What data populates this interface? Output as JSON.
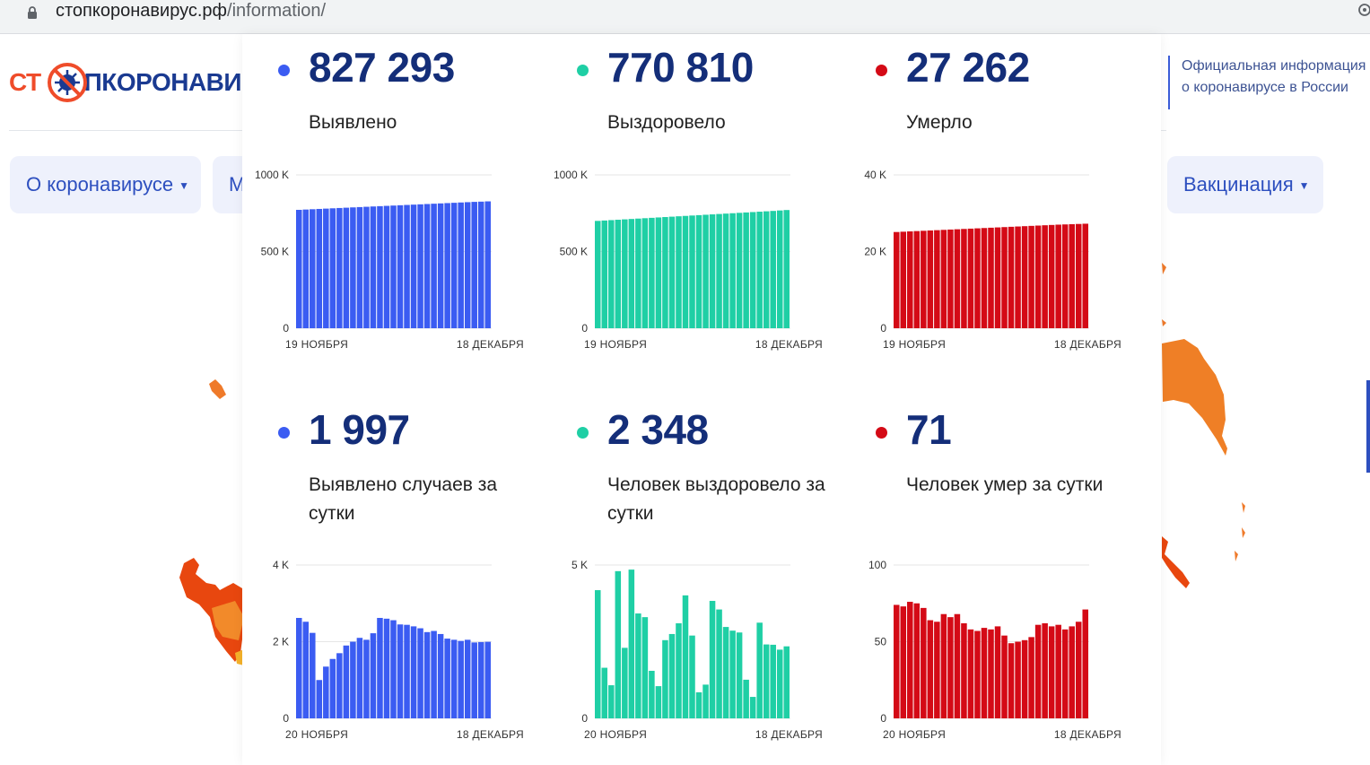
{
  "browser": {
    "url_host": "стопкоронавирус.рф",
    "url_path": "/information/"
  },
  "site": {
    "logo_left": "СТ",
    "logo_right": "ПКОРОНАВИ",
    "official_line1": "Официальная информация",
    "official_line2": "о коронавирусе в России",
    "nav": [
      {
        "label": "О коронавирусе"
      },
      {
        "label": "М"
      },
      {
        "label": "Вакцинация"
      }
    ]
  },
  "colors": {
    "blue": "#3b5cf2",
    "green": "#1fcfa5",
    "red": "#d40a16"
  },
  "stats": [
    {
      "value": "827 293",
      "label": "Выявлено",
      "color": "blue"
    },
    {
      "value": "770 810",
      "label": "Выздоровело",
      "color": "green"
    },
    {
      "value": "27 262",
      "label": "Умерло",
      "color": "red"
    },
    {
      "value": "1 997",
      "label": "Выявлено случаев за сутки",
      "color": "blue"
    },
    {
      "value": "2 348",
      "label": "Человек выздоровело за сутки",
      "color": "green"
    },
    {
      "value": "71",
      "label": "Человек умер за сутки",
      "color": "red"
    }
  ],
  "chart_data": [
    {
      "type": "bar",
      "title": "",
      "color": "blue",
      "x_start_label": "19 НОЯБРЯ",
      "x_end_label": "18 ДЕКАБРЯ",
      "ylim": [
        0,
        1000000
      ],
      "yticks": [
        0,
        500000,
        1000000
      ],
      "ytick_labels": [
        "0",
        "500 K",
        "1000 K"
      ],
      "values": [
        772000,
        774000,
        776000,
        778000,
        780000,
        782000,
        784000,
        786000,
        788000,
        790000,
        792000,
        794000,
        796000,
        798000,
        800000,
        802000,
        804000,
        806000,
        808000,
        810000,
        812000,
        814000,
        816000,
        818000,
        820000,
        822000,
        824000,
        825500,
        827293
      ]
    },
    {
      "type": "bar",
      "title": "",
      "color": "green",
      "x_start_label": "19 НОЯБРЯ",
      "x_end_label": "18 ДЕКАБРЯ",
      "ylim": [
        0,
        1000000
      ],
      "yticks": [
        0,
        500000,
        1000000
      ],
      "ytick_labels": [
        "0",
        "500 K",
        "1000 K"
      ],
      "values": [
        700000,
        702500,
        705000,
        707500,
        710000,
        712500,
        715000,
        717500,
        720000,
        722500,
        725000,
        727500,
        730000,
        732500,
        735000,
        737500,
        740000,
        742500,
        745000,
        747500,
        750000,
        752500,
        755000,
        757500,
        760000,
        762500,
        765000,
        768000,
        770810
      ]
    },
    {
      "type": "bar",
      "title": "",
      "color": "red",
      "x_start_label": "19 НОЯБРЯ",
      "x_end_label": "18 ДЕКАБРЯ",
      "ylim": [
        0,
        40000
      ],
      "yticks": [
        0,
        20000,
        40000
      ],
      "ytick_labels": [
        "0",
        "20 K",
        "40 K"
      ],
      "values": [
        25100,
        25180,
        25260,
        25340,
        25420,
        25500,
        25580,
        25660,
        25740,
        25820,
        25900,
        25980,
        26060,
        26140,
        26220,
        26300,
        26380,
        26460,
        26540,
        26620,
        26700,
        26780,
        26860,
        26940,
        27020,
        27080,
        27140,
        27200,
        27262
      ]
    },
    {
      "type": "bar",
      "title": "",
      "color": "blue",
      "x_start_label": "20 НОЯБРЯ",
      "x_end_label": "18 ДЕКАБРЯ",
      "ylim": [
        0,
        4000
      ],
      "yticks": [
        0,
        2000,
        4000
      ],
      "ytick_labels": [
        "0",
        "2 K",
        "4 K"
      ],
      "values": [
        2620,
        2520,
        2230,
        1000,
        1350,
        1550,
        1700,
        1900,
        2000,
        2100,
        2050,
        2220,
        2620,
        2600,
        2560,
        2450,
        2440,
        2400,
        2350,
        2250,
        2280,
        2200,
        2080,
        2050,
        2020,
        2050,
        1980,
        1990,
        1997
      ]
    },
    {
      "type": "bar",
      "title": "",
      "color": "green",
      "x_start_label": "20 НОЯБРЯ",
      "x_end_label": "18 ДЕКАБРЯ",
      "ylim": [
        0,
        5000
      ],
      "yticks": [
        0,
        5000
      ],
      "ytick_labels": [
        "0",
        "5 K"
      ],
      "values": [
        4180,
        1650,
        1080,
        4800,
        2300,
        4850,
        3420,
        3300,
        1550,
        1050,
        2550,
        2750,
        3100,
        4010,
        2700,
        850,
        1100,
        3830,
        3550,
        2980,
        2860,
        2800,
        1260,
        700,
        3120,
        2410,
        2400,
        2240,
        2348
      ]
    },
    {
      "type": "bar",
      "title": "",
      "color": "red",
      "x_start_label": "20 НОЯБРЯ",
      "x_end_label": "18 ДЕКАБРЯ",
      "ylim": [
        0,
        100
      ],
      "yticks": [
        0,
        50,
        100
      ],
      "ytick_labels": [
        "0",
        "50",
        "100"
      ],
      "values": [
        74,
        73,
        76,
        75,
        72,
        64,
        63,
        68,
        66,
        68,
        62,
        58,
        57,
        59,
        58,
        60,
        54,
        49,
        50,
        51,
        53,
        61,
        62,
        60,
        61,
        58,
        60,
        63,
        71
      ]
    }
  ]
}
